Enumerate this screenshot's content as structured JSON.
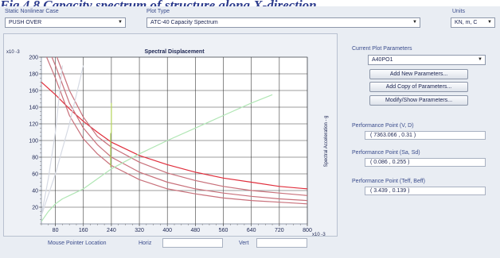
{
  "caption": "Fig 4.8 Capacity spectrum of structure along X-direction",
  "header": {
    "case_label": "Static Nonlinear Case",
    "case_value": "PUSH OVER",
    "plot_type_label": "Plot Type",
    "plot_type_value": "ATC-40 Capacity Spectrum",
    "units_label": "Units",
    "units_value": "KN, m, C"
  },
  "chart_data": {
    "type": "line",
    "title": "Spectral Displacement",
    "ylabel": "Spectral Acceleration - g",
    "y_exponent": "x10 -3",
    "x_exponent": "x10 -3",
    "xlim": [
      40,
      800
    ],
    "ylim": [
      0,
      200
    ],
    "x_ticks": [
      "80",
      "160",
      "240",
      "320",
      "400",
      "480",
      "560",
      "640",
      "720",
      "800"
    ],
    "y_ticks": [
      "20",
      "40",
      "60",
      "80",
      "100",
      "120",
      "140",
      "160",
      "180",
      "200"
    ],
    "grid": true,
    "series": [
      {
        "color": "#e02e3c",
        "x": [
          40,
          80,
          120,
          160,
          200,
          240,
          320,
          400,
          480,
          560,
          640,
          720,
          800
        ],
        "y": [
          170,
          155,
          138,
          123,
          110,
          98,
          82,
          71,
          62,
          55,
          50,
          45,
          42
        ]
      },
      {
        "color": "#c8707a",
        "x": [
          40,
          80,
          120,
          160,
          200,
          240,
          320,
          400,
          480,
          560,
          640,
          720,
          800
        ],
        "y": [
          250,
          205,
          160,
          128,
          105,
          92,
          74,
          61,
          52,
          45,
          40,
          37,
          34
        ]
      },
      {
        "color": "#c8707a",
        "x": [
          40,
          80,
          120,
          160,
          200,
          240,
          320,
          400,
          480,
          560,
          640,
          720,
          800
        ],
        "y": [
          230,
          190,
          145,
          115,
          95,
          80,
          62,
          50,
          42,
          37,
          33,
          30,
          28
        ]
      },
      {
        "color": "#c8707a",
        "x": [
          40,
          80,
          120,
          160,
          200,
          240,
          320,
          400,
          480,
          560,
          640,
          720,
          800
        ],
        "y": [
          215,
          175,
          130,
          102,
          84,
          70,
          53,
          42,
          36,
          31,
          28,
          26,
          24
        ]
      },
      {
        "color": "#b0e6b4",
        "x": [
          40,
          60,
          80,
          100,
          120,
          160,
          240,
          320,
          400,
          480,
          560,
          640,
          700
        ],
        "y": [
          3,
          15,
          24,
          30,
          34,
          42,
          66,
          84,
          100,
          115,
          130,
          145,
          155
        ]
      },
      {
        "color": "#b4d45a",
        "x": [
          240,
          240,
          238,
          238
        ],
        "y": [
          145,
          110,
          108,
          68
        ]
      },
      {
        "color": "#d6dae4",
        "x": [
          40,
          80,
          120,
          160
        ],
        "y": [
          10,
          60,
          120,
          190
        ]
      },
      {
        "color": "#d6dae4",
        "x": [
          40,
          60,
          80,
          100
        ],
        "y": [
          10,
          55,
          110,
          190
        ]
      }
    ]
  },
  "right": {
    "current_label": "Current Plot Parameters",
    "current_value": "A40PO1",
    "add_new": "Add New Parameters...",
    "add_copy": "Add Copy of Parameters...",
    "modify": "Modify/Show Parameters...",
    "pp1_label": "Performance Point (V, D)",
    "pp1_value": "( 7363.066 , 0.31 )",
    "pp2_label": "Performance Point (Sa, Sd)",
    "pp2_value": "( 0.086 , 0.255 )",
    "pp3_label": "Performance Point (Teff, Beff)",
    "pp3_value": "( 3.439 , 0.139 )"
  },
  "footer": {
    "mouse_label": "Mouse Pointer Location",
    "horiz_label": "Horiz",
    "vert_label": "Vert"
  }
}
